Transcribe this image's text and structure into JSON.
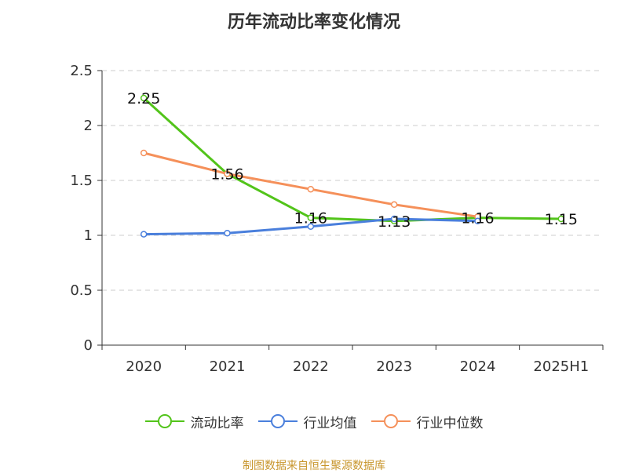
{
  "title": "历年流动比率变化情况",
  "source": "制图数据来自恒生聚源数据库",
  "chart_data": {
    "type": "line",
    "title": "历年流动比率变化情况",
    "categories": [
      "2020",
      "2021",
      "2022",
      "2023",
      "2024",
      "2025H1"
    ],
    "ylim": [
      0,
      2.5
    ],
    "yticks": [
      "0",
      "0.5",
      "1",
      "1.5",
      "2",
      "2.5"
    ],
    "grid": true,
    "legend_position": "bottom",
    "series": [
      {
        "name": "流动比率",
        "color": "#52c41a",
        "values": [
          2.25,
          1.56,
          1.16,
          1.13,
          1.16,
          1.15
        ],
        "labels": [
          "2.25",
          "1.56",
          "1.16",
          "1.13",
          "1.16",
          "1.15"
        ]
      },
      {
        "name": "行业均值",
        "color": "#4a7fdc",
        "values": [
          1.01,
          1.02,
          1.08,
          1.15,
          1.13,
          null
        ]
      },
      {
        "name": "行业中位数",
        "color": "#f5905a",
        "values": [
          1.75,
          1.56,
          1.42,
          1.28,
          1.17,
          null
        ]
      }
    ]
  }
}
